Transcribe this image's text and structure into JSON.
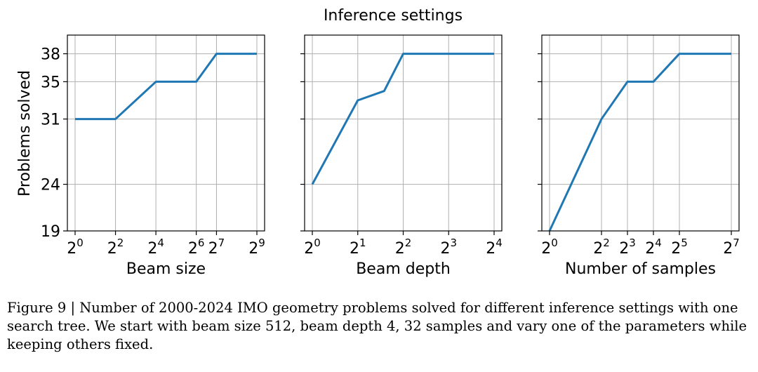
{
  "figure": {
    "suptitle": "Inference settings",
    "ylabel": "Problems solved",
    "caption": "Figure 9 | Number of 2000-2024 IMO geometry problems solved for different inference settings with one search tree. We start with beam size 512, beam depth 4, 32 samples and vary one of the parameters while keeping others fixed."
  },
  "chart_data": [
    {
      "type": "line",
      "title": "",
      "xlabel": "Beam size",
      "ylabel": "Problems solved",
      "x_scale": "log2",
      "xlim_exp": [
        0,
        9
      ],
      "ylim": [
        19,
        40
      ],
      "yticks": [
        19,
        24,
        31,
        35,
        38
      ],
      "xtick_exponents": [
        0,
        2,
        4,
        6,
        7,
        9
      ],
      "xtick_base": "2",
      "grid": true,
      "series": [
        {
          "name": "Beam size",
          "color": "#1f77b4",
          "x_exp": [
            0,
            2,
            4,
            6,
            7,
            9
          ],
          "values": [
            31,
            31,
            35,
            35,
            38,
            38
          ]
        }
      ]
    },
    {
      "type": "line",
      "title": "",
      "xlabel": "Beam depth",
      "ylabel": "",
      "x_scale": "log2",
      "xlim_exp": [
        0,
        4
      ],
      "ylim": [
        19,
        40
      ],
      "yticks": [
        19,
        24,
        31,
        35,
        38
      ],
      "xtick_exponents": [
        0,
        1,
        2,
        3,
        4
      ],
      "xtick_base": "2",
      "grid": true,
      "series": [
        {
          "name": "Beam depth",
          "color": "#1f77b4",
          "x_exp": [
            0,
            1,
            1.58,
            2,
            3,
            4
          ],
          "values": [
            24,
            33,
            34,
            38,
            38,
            38
          ]
        }
      ]
    },
    {
      "type": "line",
      "title": "",
      "xlabel": "Number of samples",
      "ylabel": "",
      "x_scale": "log2",
      "xlim_exp": [
        0,
        7
      ],
      "ylim": [
        19,
        40
      ],
      "yticks": [
        19,
        24,
        31,
        35,
        38
      ],
      "xtick_exponents": [
        0,
        2,
        3,
        4,
        5,
        7
      ],
      "xtick_base": "2",
      "grid": true,
      "series": [
        {
          "name": "Number of samples",
          "color": "#1f77b4",
          "x_exp": [
            0,
            2,
            3,
            4,
            5,
            7
          ],
          "values": [
            19,
            31,
            35,
            35,
            38,
            38
          ]
        }
      ]
    }
  ]
}
